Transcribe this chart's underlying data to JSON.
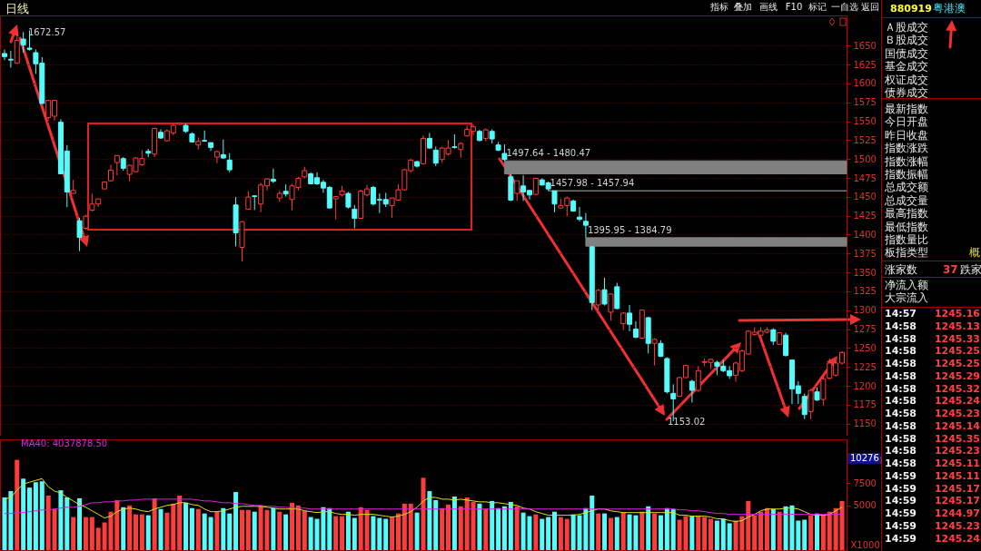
{
  "chart_data": [
    {
      "type": "candlestick",
      "title": "日线",
      "categories": [
        null,
        null,
        null,
        null,
        null,
        null,
        null,
        null,
        null,
        null,
        null,
        null,
        null,
        null,
        null,
        null,
        null,
        null,
        null,
        null,
        null,
        null,
        null,
        null,
        null,
        null,
        null,
        null,
        null,
        null,
        null,
        null,
        null,
        null,
        null,
        null,
        null,
        null,
        null,
        null,
        null,
        null,
        null,
        null,
        null,
        null,
        null,
        null,
        null,
        null,
        null,
        null,
        null,
        null,
        null,
        null,
        null,
        null,
        null,
        null,
        null,
        null,
        null,
        null,
        null,
        null,
        null,
        null,
        null,
        null,
        null,
        null,
        null,
        null,
        null,
        null,
        null,
        null,
        null,
        null,
        null,
        null,
        null,
        null,
        null,
        null,
        null,
        null,
        null,
        null,
        null,
        null,
        null,
        null,
        null,
        null,
        null,
        null,
        null,
        null,
        null,
        null,
        null,
        null,
        null,
        null,
        null,
        null,
        null,
        null,
        null,
        null,
        null,
        null,
        null,
        null,
        null,
        null,
        null,
        null,
        null,
        null,
        null,
        null,
        null,
        null,
        null,
        null,
        null,
        null,
        null,
        null,
        null,
        null,
        null
      ],
      "ohlc": [
        [
          1639.6,
          1644.8,
          1630.8,
          1635.6
        ],
        [
          1632,
          1643,
          1621,
          1631
        ],
        [
          1626.8,
          1672.57,
          1626,
          1656.9
        ],
        [
          1658.8,
          1668,
          1640.8,
          1650.8
        ],
        [
          1646.8,
          1670,
          1643.6,
          1645.2
        ],
        [
          1640.8,
          1645,
          1612.8,
          1626
        ],
        [
          1626.8,
          1634.8,
          1573,
          1573.5
        ],
        [
          1554.7,
          1577.5,
          1550.7,
          1577.5
        ],
        [
          1556.7,
          1578.7,
          1550.7,
          1577.5
        ],
        [
          1548.7,
          1552.7,
          1480,
          1480.5
        ],
        [
          1510.6,
          1518.6,
          1436.5,
          1456.5
        ],
        [
          1454.5,
          1472.5,
          1454.5,
          1458.5
        ],
        [
          1418.4,
          1422.4,
          1378.3,
          1396.4
        ],
        [
          1408.4,
          1426.4,
          1406.4,
          1424.4
        ],
        [
          1432.5,
          1454.5,
          1430.5,
          1440.5
        ],
        [
          1440.5,
          1447.3,
          1436.5,
          1447.3
        ],
        [
          1460.5,
          1470.5,
          1460.5,
          1469.7
        ],
        [
          1471.3,
          1492.6,
          1470.5,
          1485.4
        ],
        [
          1495.4,
          1504.6,
          1478.5,
          1504.6
        ],
        [
          1500.6,
          1502.6,
          1484.6,
          1487.8
        ],
        [
          1479.7,
          1492.6,
          1470.5,
          1491.8
        ],
        [
          1483.3,
          1502.6,
          1482.5,
          1501.4
        ],
        [
          1492.6,
          1511.8,
          1490.6,
          1500.6
        ],
        [
          1510.2,
          1513.4,
          1502.6,
          1507.8
        ],
        [
          1506.6,
          1541.8,
          1502.6,
          1540.6
        ],
        [
          1535.4,
          1539.4,
          1526.6,
          1527.8
        ],
        [
          1524.2,
          1539.4,
          1523.4,
          1537.4
        ],
        [
          1534.6,
          1546.7,
          1531.4,
          1544.6
        ],
        [
          1545.9,
          1548.3,
          1545.1,
          1547.5
        ],
        [
          1544.6,
          1546.7,
          1534.6,
          1536.6
        ],
        [
          1533.4,
          1535.4,
          1521.8,
          1522.6
        ],
        [
          1518.6,
          1528.6,
          1512.6,
          1523.4
        ],
        [
          1524.6,
          1537.8,
          1523.4,
          1523.8
        ],
        [
          1521.8,
          1521.8,
          1510.6,
          1515.4
        ],
        [
          1502.6,
          1510.6,
          1494.6,
          1509.8
        ],
        [
          1505.8,
          1525.8,
          1500.6,
          1501.4
        ],
        [
          1498.6,
          1507.8,
          1482.5,
          1485.8
        ],
        [
          1439.3,
          1449.7,
          1384.4,
          1402.4
        ],
        [
          1383.2,
          1417.2,
          1364.3,
          1417.2
        ],
        [
          1433.7,
          1457.7,
          1433.7,
          1449.7
        ],
        [
          1451.3,
          1451.3,
          1432.5,
          1450.5
        ],
        [
          1440.5,
          1468.5,
          1429.7,
          1465.7
        ],
        [
          1464.5,
          1474.5,
          1458.5,
          1473.7
        ],
        [
          1473.3,
          1487.4,
          1468.5,
          1470.5
        ],
        [
          1448.5,
          1458.5,
          1443.3,
          1454.5
        ],
        [
          1457.3,
          1466.5,
          1450.5,
          1453.7
        ],
        [
          1446.5,
          1467.3,
          1432.5,
          1464.5
        ],
        [
          1462.5,
          1476.5,
          1458.5,
          1474.5
        ],
        [
          1476.5,
          1489.8,
          1474.5,
          1484.6
        ],
        [
          1480.5,
          1482.5,
          1466.5,
          1467.3
        ],
        [
          1475.3,
          1482.5,
          1465.7,
          1467.3
        ],
        [
          1469.3,
          1472.5,
          1455.3,
          1461.7
        ],
        [
          1462.5,
          1464.5,
          1434.5,
          1435.3
        ],
        [
          1447.3,
          1450.5,
          1420.4,
          1450.5
        ],
        [
          1452.5,
          1464.5,
          1450.5,
          1457.7
        ],
        [
          1454.5,
          1456.5,
          1434.5,
          1436.5
        ],
        [
          1433.7,
          1439.3,
          1408.4,
          1421.6
        ],
        [
          1421.6,
          1459.3,
          1421.6,
          1457.7
        ],
        [
          1452.5,
          1465.7,
          1450.5,
          1460.5
        ],
        [
          1462.5,
          1464.5,
          1438.5,
          1440.5
        ],
        [
          1446.5,
          1454.5,
          1428.5,
          1445.7
        ],
        [
          1446.5,
          1455.3,
          1436.5,
          1440.5
        ],
        [
          1438.5,
          1448.5,
          1422.4,
          1448.5
        ],
        [
          1445.7,
          1466.5,
          1444.9,
          1459.3
        ],
        [
          1459.3,
          1486.6,
          1458.5,
          1485.8
        ],
        [
          1484.6,
          1500.6,
          1482.5,
          1498.6
        ],
        [
          1496.6,
          1497.8,
          1488.6,
          1490.6
        ],
        [
          1493.8,
          1531.4,
          1492.6,
          1527.4
        ],
        [
          1527.4,
          1534.6,
          1513.4,
          1514.6
        ],
        [
          1511.8,
          1516.6,
          1490.6,
          1494.6
        ],
        [
          1499.4,
          1516.6,
          1495.4,
          1514.6
        ],
        [
          1506.6,
          1524.6,
          1504.6,
          1514.6
        ],
        [
          1516.2,
          1532.6,
          1513.8,
          1515.4
        ],
        [
          1512.6,
          1522.6,
          1501.8,
          1520.6
        ],
        [
          1530.6,
          1544.6,
          1529.8,
          1539.4
        ],
        [
          1536.6,
          1545.9,
          1531.4,
          1542.6
        ],
        [
          1536.6,
          1538.6,
          1523.4,
          1524.6
        ],
        [
          1527.4,
          1540.6,
          1523.4,
          1538.6
        ],
        [
          1536.6,
          1539.4,
          1520.6,
          1526.6
        ],
        [
          1518.6,
          1522.6,
          1510.6,
          1511.8
        ],
        [
          1507.4,
          1519.4,
          1497.64,
          1499.4
        ],
        [
          1476.5,
          1480.47,
          1444.5,
          1445.7
        ],
        [
          1454.5,
          1471.3,
          1444.5,
          1471.3
        ],
        [
          1464.5,
          1478.5,
          1444.5,
          1456.5
        ],
        [
          1458.5,
          1459.3,
          1446.5,
          1452.5
        ],
        [
          1453.3,
          1475.3,
          1452.5,
          1474.5
        ],
        [
          1472.5,
          1474.5,
          1464.5,
          1465.7
        ],
        [
          1468.5,
          1470.5,
          1457.98,
          1460.5
        ],
        [
          1457.94,
          1457.94,
          1429.7,
          1440.5
        ],
        [
          1435.3,
          1447.3,
          1434.5,
          1438.5
        ],
        [
          1438.5,
          1450.5,
          1424.4,
          1448.5
        ],
        [
          1444.5,
          1446.5,
          1430.5,
          1431.3
        ],
        [
          1423.2,
          1436.5,
          1417.6,
          1420.4
        ],
        [
          1417.6,
          1428.5,
          1395.95,
          1412.4
        ],
        [
          1384,
          1384.79,
          1300.2,
          1310.2
        ],
        [
          1307,
          1328.3,
          1300.2,
          1326.3
        ],
        [
          1327.1,
          1343.1,
          1306.2,
          1308.2
        ],
        [
          1297.4,
          1322.3,
          1286.2,
          1321.5
        ],
        [
          1331.1,
          1336.3,
          1301.4,
          1302.2
        ],
        [
          1282.2,
          1297.4,
          1274.2,
          1296.2
        ],
        [
          1296.2,
          1307,
          1272.2,
          1281.4
        ],
        [
          1275,
          1285.4,
          1263,
          1264.2
        ],
        [
          1263,
          1300.2,
          1263,
          1300.2
        ],
        [
          1290.2,
          1291,
          1243,
          1256.2
        ],
        [
          1256.2,
          1263,
          1226.9,
          1261.4
        ],
        [
          1256.2,
          1260.2,
          1238.1,
          1239
        ],
        [
          1236.1,
          1238.1,
          1190,
          1192
        ],
        [
          1190,
          1202,
          1153.02,
          1182.8
        ],
        [
          1186,
          1212,
          1186,
          1210.9
        ],
        [
          1210.9,
          1228.1,
          1210,
          1226.9
        ],
        [
          1206,
          1208,
          1178,
          1194
        ],
        [
          1194,
          1226.1,
          1192,
          1220.1
        ],
        [
          1231,
          1236.1,
          1226.1,
          1232
        ],
        [
          1231,
          1236.1,
          1222.1,
          1235
        ],
        [
          1231,
          1233.3,
          1214.1,
          1226.1
        ],
        [
          1226.1,
          1234.1,
          1218.1,
          1220.1
        ],
        [
          1220.1,
          1226.1,
          1209.3,
          1213.3
        ],
        [
          1214.1,
          1232.1,
          1205.3,
          1230.1
        ],
        [
          1220.1,
          1248.1,
          1218.1,
          1246.1
        ],
        [
          1242.1,
          1273.4,
          1241.3,
          1272.2
        ],
        [
          1268.1,
          1277.4,
          1266.2,
          1270.9
        ],
        [
          1267,
          1277.4,
          1266.2,
          1272.2
        ],
        [
          1271,
          1277.4,
          1269.4,
          1274.2
        ],
        [
          1274.2,
          1276.2,
          1254.2,
          1259
        ],
        [
          1255,
          1271,
          1254.2,
          1270.2
        ],
        [
          1267,
          1270.2,
          1238.9,
          1240.1
        ],
        [
          1234.1,
          1234.1,
          1176,
          1196
        ],
        [
          1200,
          1206,
          1176,
          1190
        ],
        [
          1186,
          1190,
          1156,
          1162
        ],
        [
          1166,
          1196,
          1156,
          1194
        ],
        [
          1192,
          1198,
          1180,
          1181.2
        ],
        [
          1182,
          1212,
          1174,
          1209.3
        ],
        [
          1210,
          1236.1,
          1208,
          1230.1
        ],
        [
          1214.1,
          1232.1,
          1212,
          1230.1
        ],
        [
          1230.1,
          1246.1,
          1228.1,
          1244.1
        ]
      ],
      "colors": [
        "#54fcfc",
        "#54fcfc",
        "#ff3c3c",
        "#54fcfc",
        "#54fcfc",
        "#54fcfc",
        "#54fcfc",
        "#ff3c3c",
        "#ff3c3c",
        "#54fcfc",
        "#54fcfc",
        "#ff3c3c",
        "#54fcfc",
        "#ff3c3c",
        "#ff3c3c",
        "#ff3c3c",
        "#ff3c3c",
        "#ff3c3c",
        "#ff3c3c",
        "#54fcfc",
        "#ff3c3c",
        "#ff3c3c",
        "#ff3c3c",
        "#54fcfc",
        "#ff3c3c",
        "#54fcfc",
        "#ff3c3c",
        "#ff3c3c",
        "#ff3c3c",
        "#54fcfc",
        "#54fcfc",
        "#ff3c3c",
        "#54fcfc",
        "#54fcfc",
        "#ff3c3c",
        "#54fcfc",
        "#54fcfc",
        "#54fcfc",
        "#ff3c3c",
        "#ff3c3c",
        "#54fcfc",
        "#ff3c3c",
        "#ff3c3c",
        "#54fcfc",
        "#ff3c3c",
        "#54fcfc",
        "#ff3c3c",
        "#ff3c3c",
        "#ff3c3c",
        "#54fcfc",
        "#54fcfc",
        "#54fcfc",
        "#54fcfc",
        "#ff3c3c",
        "#ff3c3c",
        "#54fcfc",
        "#54fcfc",
        "#ff3c3c",
        "#ff3c3c",
        "#54fcfc",
        "#54fcfc",
        "#54fcfc",
        "#ff3c3c",
        "#ff3c3c",
        "#ff3c3c",
        "#ff3c3c",
        "#54fcfc",
        "#ff3c3c",
        "#54fcfc",
        "#54fcfc",
        "#ff3c3c",
        "#ff3c3c",
        "#54fcfc",
        "#ff3c3c",
        "#ff3c3c",
        "#ff3c3c",
        "#54fcfc",
        "#ff3c3c",
        "#54fcfc",
        "#54fcfc",
        "#54fcfc",
        "#54fcfc",
        "#ff3c3c",
        "#54fcfc",
        "#54fcfc",
        "#ff3c3c",
        "#54fcfc",
        "#54fcfc",
        "#54fcfc",
        "#ff3c3c",
        "#ff3c3c",
        "#54fcfc",
        "#54fcfc",
        "#54fcfc",
        "#54fcfc",
        "#ff3c3c",
        "#54fcfc",
        "#ff3c3c",
        "#54fcfc",
        "#ff3c3c",
        "#54fcfc",
        "#54fcfc",
        "#ff3c3c",
        "#54fcfc",
        "#ff3c3c",
        "#54fcfc",
        "#54fcfc",
        "#54fcfc",
        "#ff3c3c",
        "#ff3c3c",
        "#54fcfc",
        "#ff3c3c",
        "#ff3c3c",
        "#ff3c3c",
        "#54fcfc",
        "#54fcfc",
        "#54fcfc",
        "#ff3c3c",
        "#ff3c3c",
        "#ff3c3c",
        "#ff3c3c",
        "#ff3c3c",
        "#ff3c3c",
        "#54fcfc",
        "#ff3c3c",
        "#54fcfc",
        "#54fcfc",
        "#54fcfc",
        "#54fcfc",
        "#ff3c3c",
        "#54fcfc",
        "#ff3c3c",
        "#ff3c3c",
        "#ff3c3c",
        "#ff3c3c"
      ],
      "ylim": [
        1134,
        1690
      ],
      "yticks": [
        1150,
        1175,
        1200,
        1225,
        1250,
        1275,
        1300,
        1325,
        1350,
        1375,
        1400,
        1425,
        1450,
        1475,
        1500,
        1525,
        1550,
        1575,
        1600,
        1625,
        1650
      ],
      "grid": "y",
      "bands": [
        {
          "axis": "y",
          "from": 1480.47,
          "to": 1497.64,
          "label": "1497.64 - 1480.47",
          "color": "#808080"
        },
        {
          "axis": "y",
          "from": 1457.94,
          "to": 1457.98,
          "label": "1457.98 - 1457.94",
          "color": "#808080"
        },
        {
          "axis": "y",
          "from": 1384.79,
          "to": 1395.95,
          "label": "1395.95 - 1384.79",
          "color": "#808080"
        }
      ],
      "annotations": [
        "1672.57",
        "1153.02",
        "指标",
        "叠加",
        "画线",
        "F10",
        "标记",
        "一自选",
        "返回"
      ]
    },
    {
      "type": "bar",
      "categories": [
        null,
        null,
        null,
        null,
        null,
        null,
        null,
        null,
        null,
        null,
        null,
        null,
        null,
        null,
        null,
        null,
        null,
        null,
        null,
        null,
        null,
        null,
        null,
        null,
        null,
        null,
        null,
        null,
        null,
        null,
        null,
        null,
        null,
        null,
        null,
        null,
        null,
        null,
        null,
        null,
        null,
        null,
        null,
        null,
        null,
        null,
        null,
        null,
        null,
        null,
        null,
        null,
        null,
        null,
        null,
        null,
        null,
        null,
        null,
        null,
        null,
        null,
        null,
        null,
        null,
        null,
        null,
        null,
        null,
        null,
        null,
        null,
        null,
        null,
        null,
        null,
        null,
        null,
        null,
        null,
        null,
        null,
        null,
        null,
        null,
        null,
        null,
        null,
        null,
        null,
        null,
        null,
        null,
        null,
        null,
        null,
        null,
        null,
        null,
        null,
        null,
        null,
        null,
        null,
        null,
        null,
        null,
        null,
        null,
        null,
        null,
        null,
        null,
        null,
        null,
        null,
        null,
        null,
        null,
        null,
        null,
        null,
        null,
        null,
        null,
        null,
        null,
        null,
        null,
        null,
        null,
        null,
        null,
        null,
        null
      ],
      "values": [
        5900,
        6600,
        10100,
        8000,
        7000,
        7600,
        7700,
        6100,
        4600,
        6700,
        5900,
        3700,
        5800,
        3700,
        3700,
        2500,
        3100,
        4300,
        5600,
        4800,
        5000,
        4000,
        4000,
        3900,
        5800,
        4600,
        4200,
        5200,
        6100,
        5300,
        4700,
        4600,
        4100,
        3700,
        4300,
        4700,
        4100,
        6500,
        4500,
        4500,
        4300,
        5000,
        4500,
        4700,
        4300,
        4000,
        5300,
        5000,
        4400,
        3700,
        3500,
        4800,
        4700,
        3800,
        3800,
        4300,
        3600,
        4800,
        4500,
        3800,
        3600,
        3500,
        3700,
        4100,
        5200,
        5200,
        4200,
        8100,
        6600,
        5600,
        4700,
        5100,
        6000,
        4900,
        5900,
        5400,
        5200,
        4600,
        5500,
        4700,
        4900,
        5400,
        4900,
        4200,
        3800,
        4000,
        3500,
        3700,
        4300,
        3700,
        3500,
        4000,
        3900,
        4700,
        6100,
        4100,
        4100,
        3600,
        3700,
        4200,
        4000,
        3900,
        4300,
        4900,
        4100,
        3900,
        4700,
        4600,
        3400,
        3800,
        3800,
        3800,
        3700,
        3500,
        3300,
        3500,
        3000,
        3300,
        3800,
        5500,
        3900,
        4300,
        4700,
        4600,
        4300,
        4900,
        5000,
        3300,
        3400,
        3900,
        4100,
        3900,
        4300,
        4700,
        5500
      ],
      "colors": [
        "#54fcfc",
        "#54fcfc",
        "#ff3c3c",
        "#54fcfc",
        "#54fcfc",
        "#54fcfc",
        "#54fcfc",
        "#ff3c3c",
        "#ff3c3c",
        "#54fcfc",
        "#54fcfc",
        "#ff3c3c",
        "#54fcfc",
        "#ff3c3c",
        "#ff3c3c",
        "#ff3c3c",
        "#ff3c3c",
        "#ff3c3c",
        "#ff3c3c",
        "#54fcfc",
        "#ff3c3c",
        "#ff3c3c",
        "#ff3c3c",
        "#54fcfc",
        "#ff3c3c",
        "#54fcfc",
        "#ff3c3c",
        "#ff3c3c",
        "#ff3c3c",
        "#54fcfc",
        "#54fcfc",
        "#ff3c3c",
        "#54fcfc",
        "#54fcfc",
        "#ff3c3c",
        "#54fcfc",
        "#54fcfc",
        "#54fcfc",
        "#ff3c3c",
        "#ff3c3c",
        "#54fcfc",
        "#ff3c3c",
        "#ff3c3c",
        "#54fcfc",
        "#ff3c3c",
        "#54fcfc",
        "#ff3c3c",
        "#ff3c3c",
        "#ff3c3c",
        "#54fcfc",
        "#54fcfc",
        "#54fcfc",
        "#54fcfc",
        "#ff3c3c",
        "#ff3c3c",
        "#54fcfc",
        "#54fcfc",
        "#ff3c3c",
        "#ff3c3c",
        "#54fcfc",
        "#54fcfc",
        "#54fcfc",
        "#ff3c3c",
        "#ff3c3c",
        "#ff3c3c",
        "#ff3c3c",
        "#54fcfc",
        "#ff3c3c",
        "#54fcfc",
        "#54fcfc",
        "#ff3c3c",
        "#ff3c3c",
        "#54fcfc",
        "#ff3c3c",
        "#ff3c3c",
        "#ff3c3c",
        "#54fcfc",
        "#ff3c3c",
        "#54fcfc",
        "#54fcfc",
        "#54fcfc",
        "#54fcfc",
        "#ff3c3c",
        "#54fcfc",
        "#54fcfc",
        "#ff3c3c",
        "#54fcfc",
        "#54fcfc",
        "#54fcfc",
        "#ff3c3c",
        "#ff3c3c",
        "#54fcfc",
        "#54fcfc",
        "#54fcfc",
        "#54fcfc",
        "#ff3c3c",
        "#54fcfc",
        "#ff3c3c",
        "#54fcfc",
        "#ff3c3c",
        "#54fcfc",
        "#54fcfc",
        "#ff3c3c",
        "#54fcfc",
        "#ff3c3c",
        "#54fcfc",
        "#54fcfc",
        "#54fcfc",
        "#ff3c3c",
        "#ff3c3c",
        "#54fcfc",
        "#ff3c3c",
        "#ff3c3c",
        "#ff3c3c",
        "#54fcfc",
        "#54fcfc",
        "#54fcfc",
        "#ff3c3c",
        "#ff3c3c",
        "#ff3c3c",
        "#ff3c3c",
        "#ff3c3c",
        "#ff3c3c",
        "#54fcfc",
        "#ff3c3c",
        "#54fcfc",
        "#54fcfc",
        "#54fcfc",
        "#54fcfc",
        "#ff3c3c",
        "#54fcfc",
        "#ff3c3c",
        "#ff3c3c",
        "#ff3c3c",
        "#ff3c3c"
      ],
      "series": [
        {
          "type": "line",
          "color": "#e0e020",
          "values": [
            5700,
            5900,
            6700,
            7400,
            7600,
            7800,
            8000,
            7100,
            6600,
            6400,
            5900,
            5500,
            5100,
            4800,
            4400,
            4000,
            3600,
            3800,
            4300,
            4600,
            4700,
            4600,
            4400,
            4300,
            4600,
            4800,
            5000,
            5100,
            5300,
            5300,
            5100,
            5000,
            4600,
            4300,
            4300,
            4400,
            4600,
            4800,
            4900,
            4900,
            4900,
            4900,
            4800,
            4700,
            4600,
            4600,
            4600,
            4600,
            4400,
            4300,
            4200,
            4300,
            4300,
            4100,
            4000,
            4000,
            3900,
            4000,
            4000,
            4000,
            3900,
            3800,
            3700,
            3800,
            4000,
            4300,
            4800,
            5500,
            5900,
            5900,
            5700,
            5700,
            5600,
            5700,
            5600,
            5500,
            5400,
            5400,
            5300,
            5300,
            5200,
            5100,
            5000,
            4700,
            4600,
            4300,
            4100,
            3900,
            3900,
            3900,
            3900,
            3900,
            4000,
            4200,
            4400,
            4600,
            4600,
            4400,
            4300,
            4200,
            4200,
            4200,
            4200,
            4200,
            4200,
            4200,
            4200,
            4200,
            3900,
            3900,
            3800,
            3800,
            3800,
            3700,
            3500,
            3500,
            3300,
            3200,
            3300,
            3700,
            4000,
            4400,
            4600,
            4600,
            4600,
            4700,
            4700,
            4600,
            4300,
            4000,
            3900,
            3900,
            4000,
            4400,
            4800
          ]
        },
        {
          "type": "line",
          "name": "MA40: 4037878.50",
          "color": "#e020e0",
          "values": [
            4100,
            4100,
            4200,
            4200,
            4300,
            4400,
            4500,
            4500,
            4600,
            4700,
            4800,
            4800,
            4900,
            5100,
            5300,
            5300,
            5400,
            5400,
            5500,
            5500,
            5600,
            5600,
            5700,
            5700,
            5700,
            5700,
            5700,
            5700,
            5700,
            5700,
            5700,
            5600,
            5500,
            5500,
            5400,
            5300,
            5300,
            5200,
            5200,
            5100,
            5000,
            5000,
            4900,
            4900,
            4800,
            4800,
            4700,
            4700,
            4700,
            4600,
            4600,
            4600,
            4600,
            4600,
            4600,
            4600,
            4600,
            4600,
            4600,
            4600,
            4600,
            4600,
            4600,
            4600,
            4600,
            4600,
            4600,
            4600,
            4600,
            4600,
            4600,
            4600,
            4600,
            4600,
            4600,
            4600,
            4600,
            4600,
            4600,
            4600,
            4600,
            4600,
            4600,
            4600,
            4600,
            4600,
            4600,
            4600,
            4600,
            4600,
            4600,
            4600,
            4600,
            4600,
            4600,
            4600,
            4600,
            4600,
            4600,
            4600,
            4600,
            4600,
            4600,
            4600,
            4600,
            4600,
            4600,
            4600,
            4500,
            4500,
            4400,
            4400,
            4300,
            4200,
            4100,
            4100,
            4000,
            4000,
            4000,
            4000,
            4000,
            4000,
            4000,
            4000,
            4000,
            4000,
            4000,
            4000,
            4000,
            4000,
            4000,
            4000,
            4000,
            4000,
            4000
          ]
        }
      ],
      "ylim": [
        0,
        12400
      ],
      "yticks": [
        5000,
        7500,
        10000
      ],
      "ylabel": "X1000",
      "annotations": [
        {
          "text": "10276",
          "y": 10276
        }
      ]
    },
    {
      "type": "other",
      "title": "880919",
      "subtitle": "粤港澳",
      "annotations": [
        "Ａ股成交",
        "Ｂ股成交",
        "国债成交",
        "基金成交",
        "权证成交",
        "债券成交",
        "最新指数",
        "今日开盘",
        "昨日收盘",
        "指数涨跌",
        "指数涨幅",
        "指数振幅",
        "总成交额",
        "总成交量",
        "最高指数",
        "最低指数",
        "指数量比",
        "板指类型",
        "概",
        "涨家数",
        "37",
        "跌家",
        "净流入额",
        "大宗流入"
      ],
      "categories": [
        "14:57",
        "14:58",
        "14:58",
        "14:58",
        "14:58",
        "14:58",
        "14:58",
        "14:58",
        "14:58",
        "14:58",
        "14:58",
        "14:58",
        "14:58",
        "14:59",
        "14:59",
        "14:59",
        "14:59",
        "14:59",
        "14:59"
      ],
      "values": [
        1245.16,
        1245.13,
        1245.33,
        1245.25,
        1245.25,
        1245.29,
        1245.32,
        1245.24,
        1245.23,
        1245.14,
        1245.35,
        1245.23,
        1245.11,
        1245.11,
        1245.17,
        1245.17,
        1244.97,
        1245.23,
        1245.24
      ],
      "data_labels": true
    }
  ]
}
